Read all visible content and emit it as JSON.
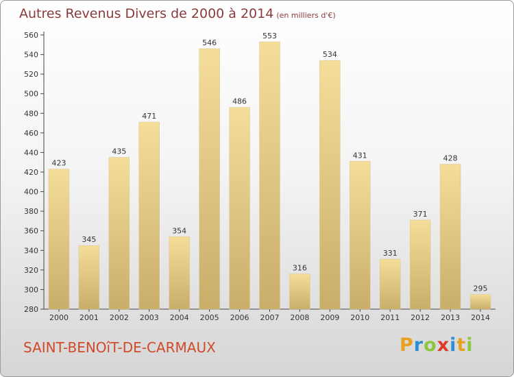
{
  "title": "Autres Revenus Divers de 2000 à 2014",
  "title_unit": "(en milliers d'€)",
  "commune": "SAINT-BENOîT-DE-CARMAUX",
  "logo": {
    "letters": [
      "P",
      "r",
      "o",
      "x",
      "i",
      "t",
      "i"
    ],
    "colors": [
      "#e8a020",
      "#2b8fd6",
      "#8cc63f",
      "#e23a2a",
      "#2b8fd6",
      "#e8a020",
      "#8cc63f"
    ]
  },
  "colors": {
    "title": "#8a3a3a",
    "commune": "#d04a2a",
    "bar_light": "#f5dd9a",
    "bar_dark": "#c9ae6a"
  },
  "chart_data": {
    "type": "bar",
    "title": "Autres Revenus Divers de 2000 à 2014",
    "xlabel": "",
    "ylabel": "",
    "categories": [
      "2000",
      "2001",
      "2002",
      "2003",
      "2004",
      "2005",
      "2006",
      "2007",
      "2008",
      "2009",
      "2010",
      "2011",
      "2012",
      "2013",
      "2014"
    ],
    "values": [
      423,
      345,
      435,
      471,
      354,
      546,
      486,
      553,
      316,
      534,
      431,
      331,
      371,
      428,
      295
    ],
    "ylim": [
      280,
      560
    ],
    "yticks": [
      280,
      300,
      320,
      340,
      360,
      380,
      400,
      420,
      440,
      460,
      480,
      500,
      520,
      540,
      560
    ],
    "grid": false,
    "legend": "none"
  }
}
